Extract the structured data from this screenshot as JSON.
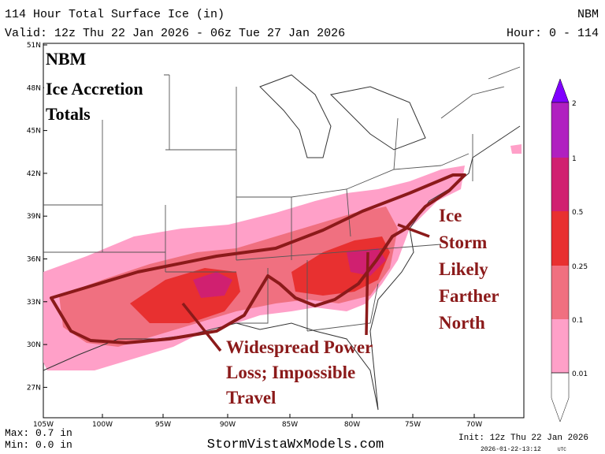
{
  "header": {
    "title": "114 Hour Total Surface Ice (in)",
    "model": "NBM",
    "valid": "Valid: 12z Thu 22 Jan 2026 - 06z Tue 27 Jan 2026",
    "hours": "Hour: 0 - 114"
  },
  "map": {
    "lat_labels": [
      "51N",
      "48N",
      "45N",
      "42N",
      "39N",
      "36N",
      "33N",
      "30N",
      "27N"
    ],
    "lon_labels": [
      "105W",
      "100W",
      "95W",
      "90W",
      "85W",
      "80W",
      "75W",
      "70W"
    ]
  },
  "annotations": {
    "title_box": [
      "NBM",
      "Ice Accretion",
      "Totals"
    ],
    "north_note": [
      "Ice",
      "Storm",
      "Likely",
      "Farther",
      "North"
    ],
    "south_note": [
      "Widespread Power",
      "Loss; Impossible",
      "Travel"
    ]
  },
  "colorbar": {
    "labels": [
      "2",
      "1",
      "0.5",
      "0.25",
      "0.1",
      "0.01"
    ]
  },
  "footer": {
    "max": "Max: 0.7 in",
    "min": "Min: 0.0 in",
    "site": "StormVistaWxModels.com",
    "init": "Init: 12z Thu 22 Jan 2026",
    "stamp": "2026-01-22-13:12",
    "stamp_unit": "UTC"
  }
}
